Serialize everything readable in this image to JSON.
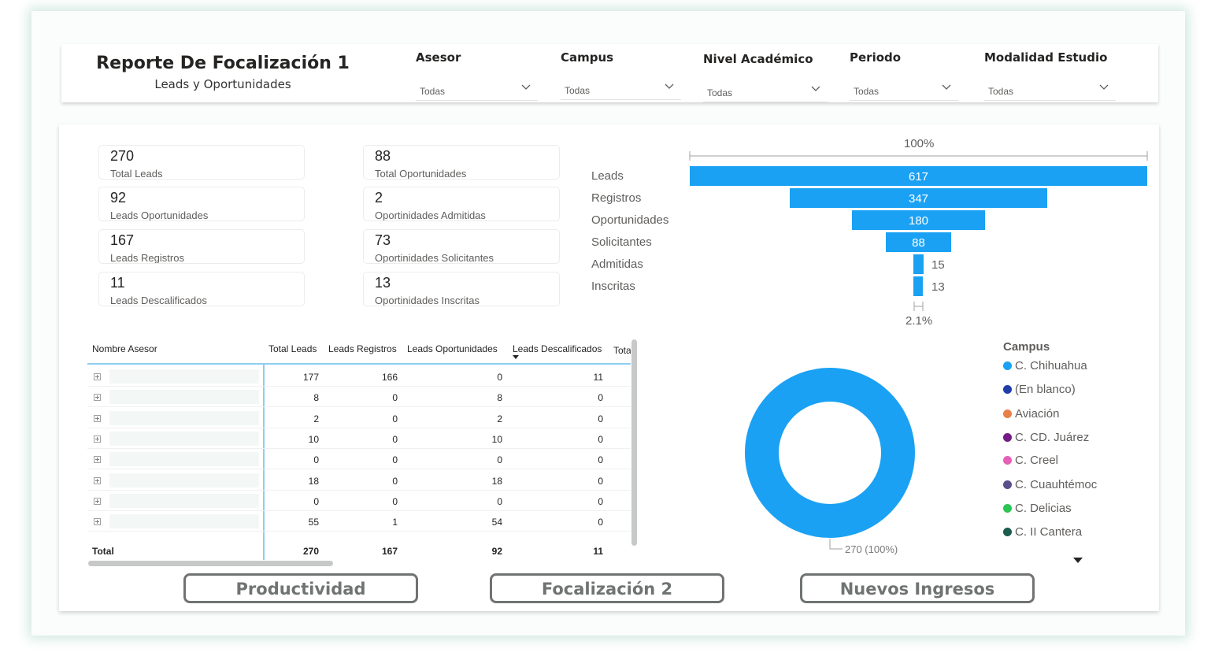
{
  "header": {
    "title": "Reporte De Focalización 1",
    "subtitle": "Leads y Oportunidades",
    "filters": [
      {
        "label": "Asesor",
        "value": "Todas"
      },
      {
        "label": "Campus",
        "value": "Todas"
      },
      {
        "label": "Nivel Académico",
        "value": "Todas"
      },
      {
        "label": "Periodo",
        "value": "Todas"
      },
      {
        "label": "Modalidad Estudio",
        "value": "Todas"
      }
    ]
  },
  "cards": [
    {
      "value": "270",
      "label": "Total Leads"
    },
    {
      "value": "92",
      "label": "Leads Oportunidades"
    },
    {
      "value": "167",
      "label": "Leads Registros"
    },
    {
      "value": "11",
      "label": "Leads Descalificados"
    },
    {
      "value": "88",
      "label": "Total Oportunidades"
    },
    {
      "value": "2",
      "label": "Oportinidades Admitidas"
    },
    {
      "value": "73",
      "label": "Oportinidades Solicitantes"
    },
    {
      "value": "13",
      "label": "Oportinidades Inscritas"
    }
  ],
  "funnel": {
    "top_pct": "100%",
    "bottom_pct": "2.1%",
    "stages": [
      {
        "label": "Leads",
        "value": "617"
      },
      {
        "label": "Registros",
        "value": "347"
      },
      {
        "label": "Oportunidades",
        "value": "180"
      },
      {
        "label": "Solicitantes",
        "value": "88"
      },
      {
        "label": "Admitidas",
        "value": "15"
      },
      {
        "label": "Inscritas",
        "value": "13"
      }
    ]
  },
  "table": {
    "columns": [
      "Nombre Asesor",
      "Total Leads",
      "Leads Registros",
      "Leads Oportunidades",
      "Leads Descalificados",
      "Tota"
    ],
    "rows": [
      [
        "177",
        "166",
        "0",
        "11"
      ],
      [
        "8",
        "0",
        "8",
        "0"
      ],
      [
        "2",
        "0",
        "2",
        "0"
      ],
      [
        "10",
        "0",
        "10",
        "0"
      ],
      [
        "0",
        "0",
        "0",
        "0"
      ],
      [
        "18",
        "0",
        "18",
        "0"
      ],
      [
        "0",
        "0",
        "0",
        "0"
      ],
      [
        "55",
        "1",
        "54",
        "0"
      ]
    ],
    "total_label": "Total",
    "totals": [
      "270",
      "167",
      "92",
      "11"
    ]
  },
  "donut": {
    "label": "270 (100%)",
    "color": "#1aa1f4"
  },
  "legend": {
    "title": "Campus",
    "items": [
      {
        "label": "C. Chihuahua",
        "color": "#1aa1f4"
      },
      {
        "label": "(En blanco)",
        "color": "#1f3ea8"
      },
      {
        "label": "Aviación",
        "color": "#e8804a"
      },
      {
        "label": "C. CD. Juárez",
        "color": "#741b86"
      },
      {
        "label": "C. Creel",
        "color": "#e65fb8"
      },
      {
        "label": "C. Cuauhtémoc",
        "color": "#5a4e8c"
      },
      {
        "label": "C. Delicias",
        "color": "#2bc553"
      },
      {
        "label": "C. II Cantera",
        "color": "#1d5c4e"
      }
    ]
  },
  "nav": {
    "productividad": "Productividad",
    "focalizacion2": "Focalización 2",
    "nuevos": "Nuevos Ingresos"
  }
}
